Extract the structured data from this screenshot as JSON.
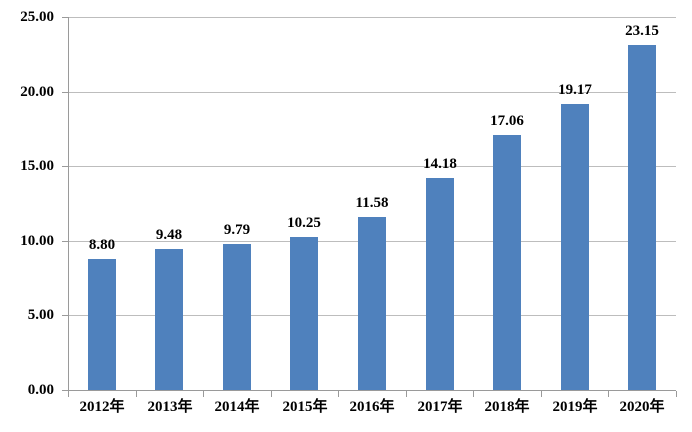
{
  "chart_data": {
    "type": "bar",
    "title": "",
    "xlabel": "",
    "ylabel": "",
    "categories": [
      "2012年",
      "2013年",
      "2014年",
      "2015年",
      "2016年",
      "2017年",
      "2018年",
      "2019年",
      "2020年"
    ],
    "values": [
      8.8,
      9.48,
      9.79,
      10.25,
      11.58,
      14.18,
      17.06,
      19.17,
      23.15
    ],
    "value_labels": [
      "8.80",
      "9.48",
      "9.79",
      "10.25",
      "11.58",
      "14.18",
      "17.06",
      "19.17",
      "23.15"
    ],
    "ylim": [
      0,
      25
    ],
    "y_tick_values": [
      0,
      5,
      10,
      15,
      20,
      25
    ],
    "y_tick_labels": [
      "0.00",
      "5.00",
      "10.00",
      "15.00",
      "20.00",
      "25.00"
    ],
    "grid": true,
    "legend_position": "none",
    "colors": {
      "bar": "#4f81bd",
      "gridline": "#bdbdbd",
      "axis": "#9a9a9a",
      "text": "#000000",
      "background": "#ffffff"
    }
  }
}
